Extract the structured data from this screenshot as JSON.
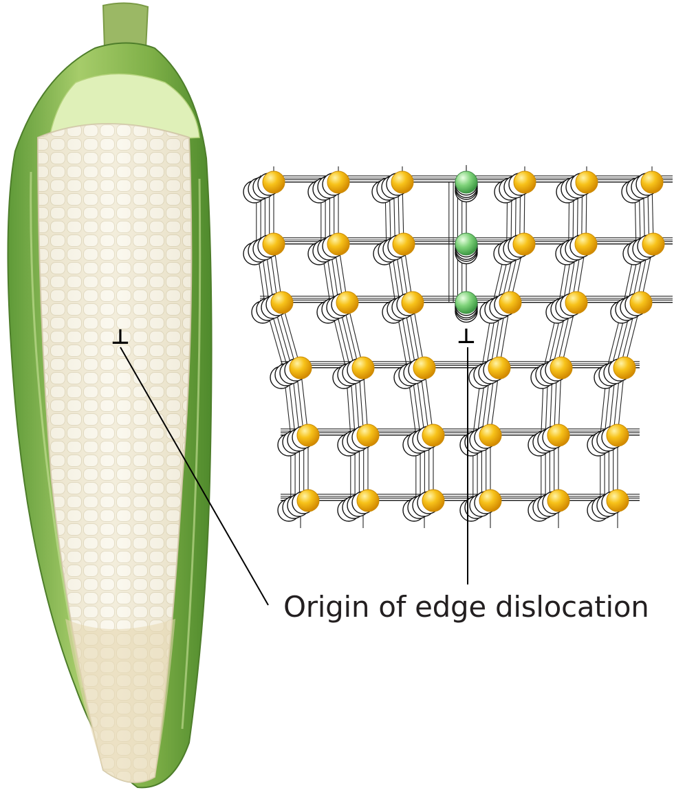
{
  "figure": {
    "callout_label": "Origin of edge dislocation",
    "dislocation_symbol": "⊥",
    "photo_subject": "corn-cob",
    "atom_colors": {
      "host": "#f2b400",
      "dislocation_column": "#6cc76c"
    }
  }
}
